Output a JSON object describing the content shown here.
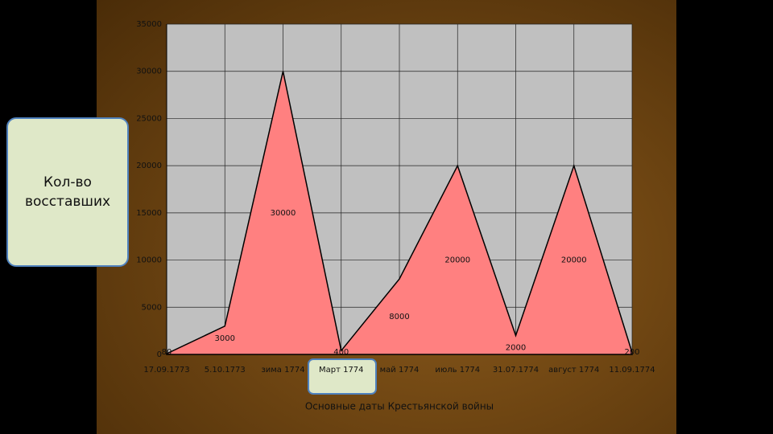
{
  "chart_data": {
    "type": "area",
    "y_label": "Кол-во восставших",
    "x_label": "Основные даты Крестьянской войны",
    "categories": [
      "17.09.1773",
      "5.10.1773",
      "зима 1774",
      "Март 1774",
      "май 1774",
      "июль 1774",
      "31.07.1774",
      "август 1774",
      "11.09.1774"
    ],
    "values": [
      80,
      3000,
      30000,
      400,
      8000,
      20000,
      2000,
      20000,
      200
    ],
    "color": "#ff8080",
    "ylim": [
      0,
      35000
    ],
    "yticks": [
      0,
      5000,
      10000,
      15000,
      20000,
      25000,
      30000,
      35000
    ],
    "grid": true
  }
}
